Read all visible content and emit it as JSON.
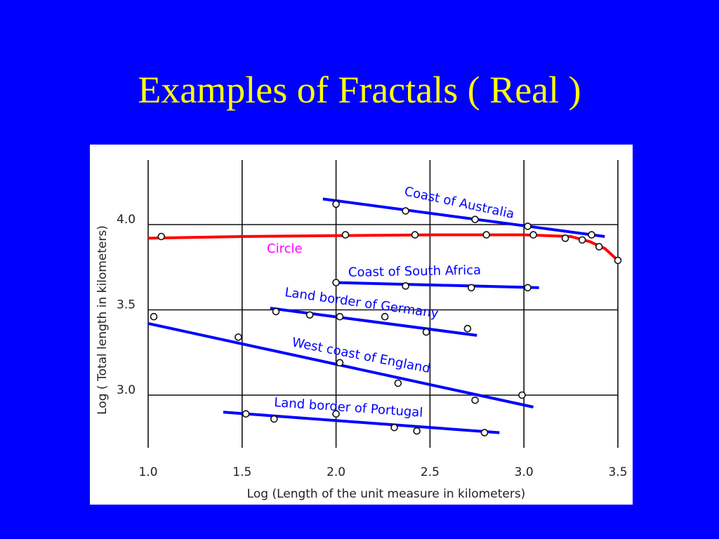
{
  "slide": {
    "title": "Examples of Fractals ( Real )",
    "background": "#0000ff",
    "title_color": "#ffff00"
  },
  "chart_data": {
    "type": "scatter",
    "xlabel": "Log (Length of the unit measure in kilometers)",
    "ylabel": "Log ( Total length in kilometers)",
    "xlim": [
      1.0,
      3.5
    ],
    "ylim": [
      2.75,
      4.25
    ],
    "x_ticks": [
      {
        "value": 1.0,
        "label": "1.0"
      },
      {
        "value": 1.5,
        "label": "1.5"
      },
      {
        "value": 2.0,
        "label": "2.0"
      },
      {
        "value": 2.5,
        "label": "2.5"
      },
      {
        "value": 3.0,
        "label": "3.0"
      },
      {
        "value": 3.5,
        "label": "3.5"
      }
    ],
    "y_ticks": [
      {
        "value": 3.0,
        "label": "3.0"
      },
      {
        "value": 3.5,
        "label": "3.5"
      },
      {
        "value": 4.0,
        "label": "4.0"
      }
    ],
    "grid": true,
    "series": [
      {
        "name": "Coast of Australia",
        "color": "#0000ff",
        "label_color": "#0000ff",
        "points": [
          [
            2.0,
            4.12
          ],
          [
            2.37,
            4.08
          ],
          [
            2.74,
            4.03
          ],
          [
            3.02,
            3.99
          ],
          [
            3.36,
            3.94
          ]
        ],
        "fit": [
          [
            1.93,
            4.15
          ],
          [
            3.43,
            3.93
          ]
        ]
      },
      {
        "name": "Circle",
        "color": "#ff0000",
        "label_color": "#ff00ff",
        "points": [
          [
            1.07,
            3.93
          ],
          [
            2.05,
            3.94
          ],
          [
            2.42,
            3.94
          ],
          [
            2.8,
            3.94
          ],
          [
            3.05,
            3.94
          ],
          [
            3.22,
            3.92
          ],
          [
            3.31,
            3.91
          ],
          [
            3.4,
            3.87
          ],
          [
            3.5,
            3.79
          ]
        ],
        "fit": [
          [
            1.0,
            3.92
          ],
          [
            1.5,
            3.93
          ],
          [
            2.0,
            3.935
          ],
          [
            2.5,
            3.94
          ],
          [
            3.0,
            3.94
          ],
          [
            3.25,
            3.93
          ],
          [
            3.35,
            3.9
          ],
          [
            3.43,
            3.86
          ],
          [
            3.5,
            3.79
          ]
        ]
      },
      {
        "name": "Coast of South Africa",
        "color": "#0000ff",
        "label_color": "#0000ff",
        "points": [
          [
            2.0,
            3.66
          ],
          [
            2.37,
            3.64
          ],
          [
            2.72,
            3.63
          ],
          [
            3.02,
            3.63
          ]
        ],
        "fit": [
          [
            2.0,
            3.66
          ],
          [
            3.08,
            3.63
          ]
        ]
      },
      {
        "name": "Land border of Germany",
        "color": "#0000ff",
        "label_color": "#0000ff",
        "points": [
          [
            1.68,
            3.49
          ],
          [
            1.86,
            3.47
          ],
          [
            2.02,
            3.46
          ],
          [
            2.26,
            3.46
          ],
          [
            2.48,
            3.37
          ],
          [
            2.7,
            3.39
          ]
        ],
        "fit": [
          [
            1.65,
            3.51
          ],
          [
            2.75,
            3.35
          ]
        ]
      },
      {
        "name": "West coast of England",
        "color": "#0000ff",
        "label_color": "#0000ff",
        "points": [
          [
            1.03,
            3.46
          ],
          [
            1.48,
            3.34
          ],
          [
            2.02,
            3.19
          ],
          [
            2.33,
            3.07
          ],
          [
            2.74,
            2.97
          ],
          [
            2.99,
            3.0
          ]
        ],
        "fit": [
          [
            1.0,
            3.42
          ],
          [
            3.05,
            2.93
          ]
        ]
      },
      {
        "name": "Land border of Portugal",
        "color": "#0000ff",
        "label_color": "#0000ff",
        "points": [
          [
            1.52,
            2.89
          ],
          [
            1.67,
            2.86
          ],
          [
            2.0,
            2.89
          ],
          [
            2.31,
            2.81
          ],
          [
            2.43,
            2.79
          ],
          [
            2.79,
            2.78
          ]
        ],
        "fit": [
          [
            1.4,
            2.9
          ],
          [
            2.87,
            2.78
          ]
        ]
      }
    ]
  }
}
